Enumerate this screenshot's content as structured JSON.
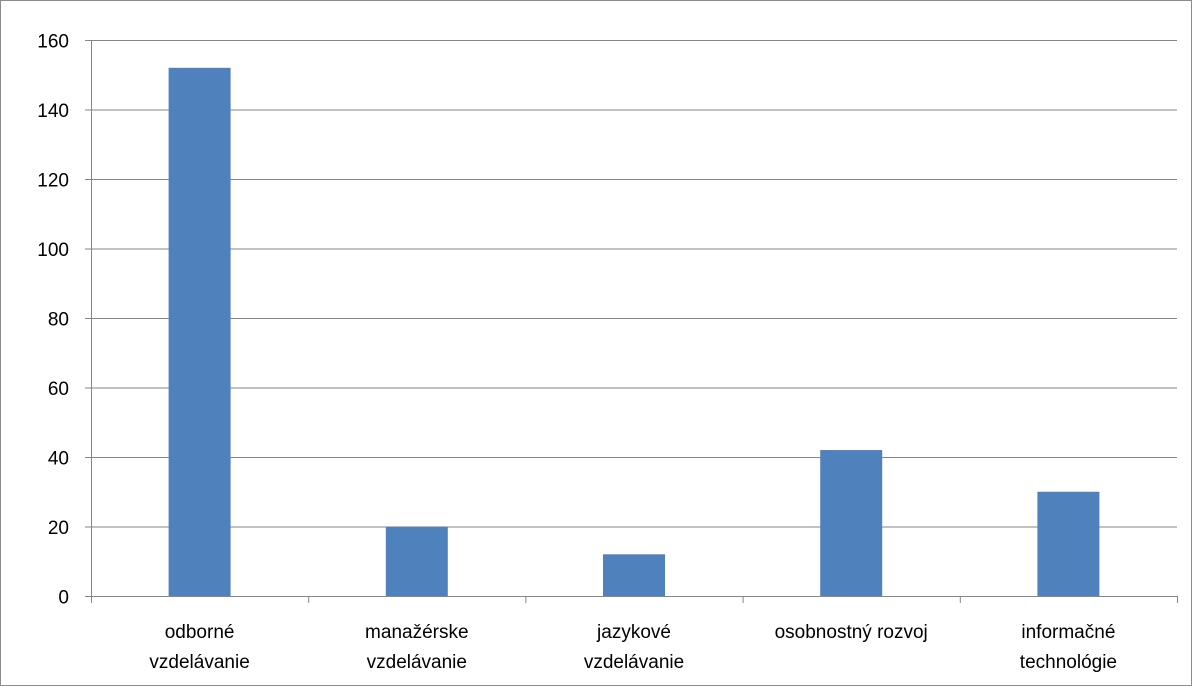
{
  "chart_data": {
    "type": "bar",
    "title": "",
    "xlabel": "",
    "ylabel": "",
    "categories": [
      [
        "odborné",
        "vzdelávanie"
      ],
      [
        "manažérske",
        "vzdelávanie"
      ],
      [
        "jazykové",
        "vzdelávanie"
      ],
      [
        "osobnostný rozvoj"
      ],
      [
        "informačné",
        "technológie"
      ]
    ],
    "values": [
      152,
      20,
      12,
      42,
      30
    ],
    "ylim": [
      0,
      160
    ],
    "yticks": [
      0,
      20,
      40,
      60,
      80,
      100,
      120,
      140,
      160
    ],
    "grid": true,
    "legend": "none",
    "colors": {
      "bar": "#4f81bd",
      "grid": "#868686",
      "axis": "#868686"
    }
  }
}
